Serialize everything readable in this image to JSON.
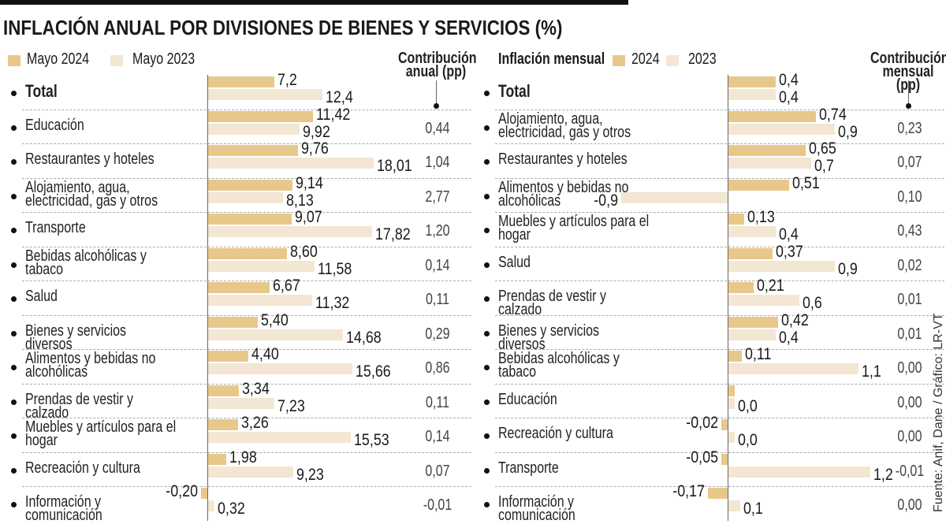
{
  "title": "INFLACIÓN ANUAL POR DIVISIONES DE BIENES Y SERVICIOS (%)",
  "source": "Fuente: Anif, Dane / Gráfico: LR-VT",
  "colors": {
    "y2024": "#e8c88a",
    "y2023": "#f3e6d3"
  },
  "chart_data": [
    {
      "type": "bar",
      "orientation": "horizontal",
      "legend_title": "",
      "series_names": [
        "Mayo 2024",
        "Mayo 2023"
      ],
      "contrib_title": "Contribución anual (pp)",
      "categories": [
        "Total",
        "Educación",
        "Restaurantes y hoteles",
        "Alojamiento, agua, electricidad, gas y otros",
        "Transporte",
        "Bebidas alcohólicas y tabaco",
        "Salud",
        "Bienes y servicios diversos",
        "Alimentos y bebidas no alcohólicas",
        "Prendas de vestir y calzado",
        "Muebles y artículos para el hogar",
        "Recreación y cultura",
        "Información y comunicación"
      ],
      "series": [
        {
          "name": "Mayo 2024",
          "values": [
            7.2,
            11.42,
            9.76,
            9.14,
            9.07,
            8.6,
            6.67,
            5.4,
            4.4,
            3.34,
            3.26,
            1.98,
            -0.2
          ],
          "labels": [
            "7,2",
            "11,42",
            "9,76",
            "9,14",
            "9,07",
            "8,60",
            "6,67",
            "5,40",
            "4,40",
            "3,34",
            "3,26",
            "1,98",
            "-0,20"
          ]
        },
        {
          "name": "Mayo 2023",
          "values": [
            12.4,
            9.92,
            18.01,
            8.13,
            17.82,
            11.58,
            11.32,
            14.68,
            15.66,
            7.23,
            15.53,
            9.23,
            0.32
          ],
          "labels": [
            "12,4",
            "9,92",
            "18,01",
            "8,13",
            "17,82",
            "11,58",
            "11,32",
            "14,68",
            "15,66",
            "7,23",
            "15,53",
            "9,23",
            "0,32"
          ]
        }
      ],
      "contribution": [
        "",
        "0,44",
        "1,04",
        "2,77",
        "1,20",
        "0,14",
        "0,11",
        "0,29",
        "0,86",
        "0,11",
        "0,14",
        "0,07",
        "-0,01"
      ]
    },
    {
      "type": "bar",
      "orientation": "horizontal",
      "legend_title": "Inflación mensual",
      "series_names": [
        "2024",
        "2023"
      ],
      "contrib_title": "Contribución mensual (pp)",
      "categories": [
        "Total",
        "Alojamiento, agua, electricidad, gas y otros",
        "Restaurantes y hoteles",
        "Alimentos y bebidas no alcohólicas",
        "Muebles y artículos para el hogar",
        "Salud",
        "Prendas de vestir y calzado",
        "Bienes y servicios diversos",
        "Bebidas alcohólicas y tabaco",
        "Educación",
        "Recreación y cultura",
        "Transporte",
        "Información y comunicación"
      ],
      "series": [
        {
          "name": "2024",
          "values": [
            0.4,
            0.74,
            0.65,
            0.51,
            0.13,
            0.37,
            0.21,
            0.42,
            0.11,
            0.0,
            -0.02,
            -0.05,
            -0.17
          ],
          "labels": [
            "0,4",
            "0,74",
            "0,65",
            "0,51",
            "0,13",
            "0,37",
            "0,21",
            "0,42",
            "0,11",
            "",
            "-0,02",
            "-0,05",
            "-0,17"
          ]
        },
        {
          "name": "2023",
          "values": [
            0.4,
            0.9,
            0.7,
            -0.9,
            0.4,
            0.9,
            0.6,
            0.4,
            1.1,
            0.0,
            0.0,
            1.2,
            0.1
          ],
          "labels": [
            "0,4",
            "0,9",
            "0,7",
            "-0,9",
            "0,4",
            "0,9",
            "0,6",
            "0,4",
            "1,1",
            "0,0",
            "0,0",
            "1,2",
            "0,1"
          ]
        }
      ],
      "contribution": [
        "",
        "0,23",
        "0,07",
        "0,10",
        "0,43",
        "0,02",
        "0,01",
        "0,01",
        "0,00",
        "0,00",
        "0,00",
        "-0,01",
        "0,00"
      ]
    }
  ]
}
